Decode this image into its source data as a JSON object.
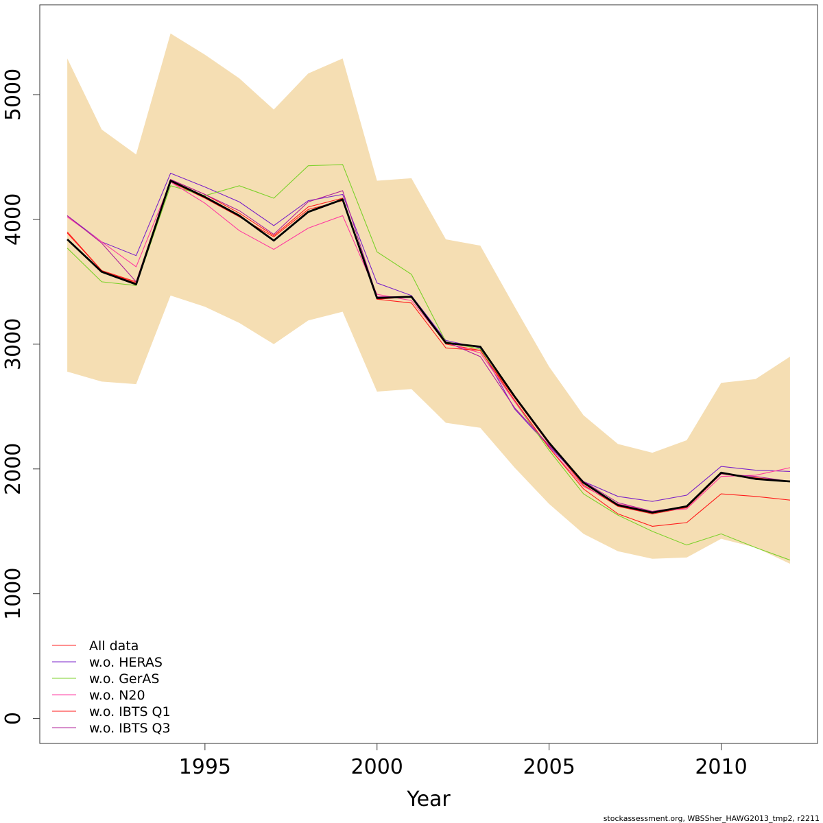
{
  "chart_data": {
    "type": "line",
    "xlabel": "Year",
    "ylabel": "",
    "xlim": [
      1990.2,
      2012.8
    ],
    "ylim": [
      -200,
      5720
    ],
    "xticks": [
      1995,
      2000,
      2005,
      2010
    ],
    "yticks": [
      0,
      1000,
      2000,
      3000,
      4000,
      5000
    ],
    "x": [
      1991,
      1992,
      1993,
      1994,
      1995,
      1996,
      1997,
      1998,
      1999,
      2000,
      2001,
      2002,
      2003,
      2004,
      2005,
      2006,
      2007,
      2008,
      2009,
      2010,
      2011,
      2012
    ],
    "confidence_band": {
      "color": "#f5deb3",
      "upper": [
        5290,
        4720,
        4520,
        5490,
        5320,
        5130,
        4880,
        5170,
        5290,
        4310,
        4330,
        3840,
        3790,
        3300,
        2820,
        2430,
        2200,
        2130,
        2230,
        2690,
        2720,
        2900
      ],
      "lower": [
        2780,
        2700,
        2680,
        3390,
        3300,
        3170,
        3000,
        3190,
        3260,
        2620,
        2640,
        2370,
        2330,
        2010,
        1720,
        1480,
        1340,
        1280,
        1290,
        1440,
        1370,
        1240
      ]
    },
    "estimate": {
      "color": "#000000",
      "values": [
        3840,
        3580,
        3480,
        4310,
        4180,
        4030,
        3830,
        4060,
        4160,
        3370,
        3380,
        3010,
        2980,
        2580,
        2210,
        1890,
        1710,
        1650,
        1700,
        1970,
        1920,
        1900
      ]
    },
    "series": [
      {
        "name": "All data",
        "color": "#ff2020",
        "values": [
          3890,
          3590,
          3490,
          4300,
          4170,
          4020,
          3860,
          4080,
          4150,
          3360,
          3380,
          3000,
          2950,
          2570,
          2200,
          1870,
          1700,
          1640,
          1690,
          1960,
          1930,
          1900
        ]
      },
      {
        "name": "w.o. HERAS",
        "color": "#7a20c8",
        "values": [
          4030,
          3820,
          3710,
          4370,
          4260,
          4140,
          3950,
          4150,
          4200,
          3490,
          3390,
          3030,
          2970,
          2480,
          2180,
          1900,
          1780,
          1740,
          1790,
          2020,
          1990,
          1980
        ]
      },
      {
        "name": "w.o. GerAS",
        "color": "#7bd12a",
        "values": [
          3770,
          3500,
          3470,
          4270,
          4190,
          4270,
          4170,
          4430,
          4440,
          3740,
          3560,
          3020,
          2960,
          2540,
          2150,
          1800,
          1630,
          1500,
          1390,
          1480,
          1370,
          1270
        ]
      },
      {
        "name": "w.o. N20",
        "color": "#ff3aa0",
        "values": [
          4020,
          3820,
          3620,
          4300,
          4130,
          3910,
          3760,
          3930,
          4030,
          3400,
          3350,
          3010,
          2930,
          2540,
          2170,
          1860,
          1720,
          1660,
          1680,
          1940,
          1950,
          2010
        ]
      },
      {
        "name": "w.o. IBTS Q1",
        "color": "#ff1a1a",
        "values": [
          3900,
          3590,
          3500,
          4320,
          4200,
          4050,
          3870,
          4100,
          4170,
          3360,
          3330,
          2970,
          2950,
          2550,
          2170,
          1840,
          1640,
          1540,
          1570,
          1800,
          1780,
          1750
        ]
      },
      {
        "name": "w.o. IBTS Q3",
        "color": "#b0209a",
        "values": [
          4030,
          3810,
          3500,
          4320,
          4200,
          4070,
          3880,
          4140,
          4230,
          3380,
          3380,
          3020,
          2900,
          2490,
          2190,
          1900,
          1730,
          1660,
          1700,
          1960,
          1940,
          1900
        ]
      }
    ],
    "legend_position": "bottom-left",
    "footer": "stockassessment.org, WBSSher_HAWG2013_tmp2, r2211"
  }
}
